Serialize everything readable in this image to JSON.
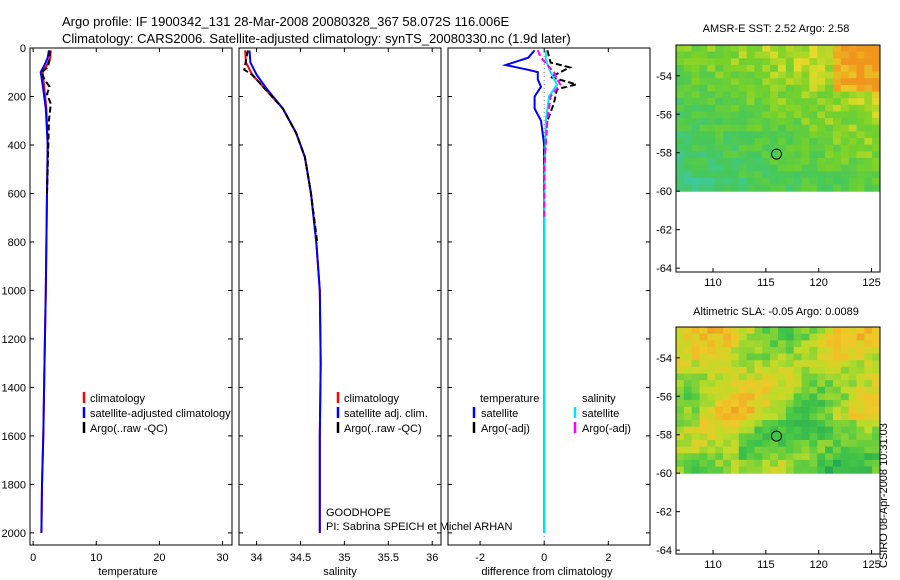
{
  "header": {
    "title_line1": "Argo profile: IF 1900342_131 28-Mar-2008 20080328_367 58.072S 116.006E",
    "title_line2": "Climatology: CARS2006. Satellite-adjusted climatology: synTS_20080330.nc (1.9d later)"
  },
  "colors": {
    "climatology": "#ff0000",
    "satellite": "#0000ff",
    "argo": "#000000",
    "satellite_sal": "#00e5ff",
    "argo_adj_sal": "#ff00ff"
  },
  "panels": {
    "temperature": {
      "xlabel": "temperature",
      "legend": [
        "climatology",
        "satellite-adjusted climatology",
        "Argo(..raw -QC)"
      ]
    },
    "salinity": {
      "xlabel": "salinity",
      "legend": [
        "climatology",
        "satellite adj. clim.",
        "Argo(..raw -QC)"
      ],
      "note1": "GOODHOPE",
      "note2": "PI: Sabrina SPEICH et Michel ARHAN"
    },
    "difference": {
      "xlabel": "difference from climatology",
      "legend_temp_head": "temperature",
      "legend_temp": [
        "satellite",
        "Argo(-adj)"
      ],
      "legend_sal_head": "salinity",
      "legend_sal": [
        "satellite",
        "Argo(-adj)"
      ]
    },
    "sst_map": {
      "title": "AMSR-E SST: 2.52 Argo: 2.58"
    },
    "sla_map": {
      "title": "Altimetric SLA: -0.05 Argo: 0.0089"
    }
  },
  "side_label": "CSIRO 08-Apr-2008 10:31:03",
  "chart_data": [
    {
      "type": "line",
      "name": "temperature profile",
      "xlabel": "temperature",
      "xlim": [
        -0.5,
        31.5
      ],
      "ylim": [
        0,
        2050
      ],
      "x_ticks": [
        0,
        10,
        20,
        30
      ],
      "y_ticks": [
        0,
        200,
        400,
        600,
        800,
        1000,
        1200,
        1400,
        1600,
        1800,
        2000
      ],
      "y_reversed": true,
      "series": [
        {
          "name": "climatology",
          "points": [
            [
              2.8,
              10
            ],
            [
              2.7,
              40
            ],
            [
              2.2,
              70
            ],
            [
              1.5,
              100
            ],
            [
              1.7,
              150
            ],
            [
              2.1,
              250
            ],
            [
              2.3,
              400
            ],
            [
              2.2,
              600
            ],
            [
              2.1,
              800
            ],
            [
              2.0,
              1000
            ],
            [
              1.8,
              1300
            ],
            [
              1.6,
              1600
            ],
            [
              1.4,
              1800
            ],
            [
              1.3,
              2000
            ]
          ]
        },
        {
          "name": "satellite-adjusted climatology",
          "points": [
            [
              2.5,
              10
            ],
            [
              2.3,
              40
            ],
            [
              1.8,
              70
            ],
            [
              1.2,
              100
            ],
            [
              1.5,
              150
            ],
            [
              2.0,
              250
            ],
            [
              2.3,
              400
            ],
            [
              2.2,
              600
            ],
            [
              2.1,
              800
            ],
            [
              2.0,
              1000
            ],
            [
              1.8,
              1300
            ],
            [
              1.6,
              1600
            ],
            [
              1.4,
              1800
            ],
            [
              1.3,
              2000
            ]
          ]
        },
        {
          "name": "Argo(..raw -QC)",
          "points": [
            [
              2.6,
              10
            ],
            [
              2.6,
              50
            ],
            [
              2.3,
              80
            ],
            [
              1.3,
              100
            ],
            [
              1.8,
              130
            ],
            [
              2.6,
              160
            ],
            [
              2.2,
              190
            ],
            [
              2.8,
              230
            ],
            [
              2.5,
              300
            ],
            [
              2.4,
              400
            ],
            [
              2.3,
              500
            ],
            [
              2.2,
              600
            ]
          ]
        }
      ]
    },
    {
      "type": "line",
      "name": "salinity profile",
      "xlabel": "salinity",
      "xlim": [
        33.8,
        36.1
      ],
      "ylim": [
        0,
        2050
      ],
      "x_ticks": [
        34,
        34.5,
        35,
        35.5,
        36
      ],
      "y_reversed": true,
      "series": [
        {
          "name": "climatology",
          "points": [
            [
              33.87,
              10
            ],
            [
              33.88,
              60
            ],
            [
              33.95,
              110
            ],
            [
              34.1,
              170
            ],
            [
              34.3,
              250
            ],
            [
              34.45,
              350
            ],
            [
              34.55,
              450
            ],
            [
              34.62,
              600
            ],
            [
              34.68,
              800
            ],
            [
              34.72,
              1000
            ],
            [
              34.73,
              1300
            ],
            [
              34.72,
              1600
            ],
            [
              34.72,
              1800
            ],
            [
              34.72,
              2000
            ]
          ]
        },
        {
          "name": "satellite adj. clim.",
          "points": [
            [
              33.92,
              10
            ],
            [
              33.93,
              60
            ],
            [
              34.0,
              110
            ],
            [
              34.12,
              170
            ],
            [
              34.3,
              250
            ],
            [
              34.45,
              350
            ],
            [
              34.55,
              450
            ],
            [
              34.62,
              600
            ],
            [
              34.68,
              800
            ],
            [
              34.72,
              1000
            ],
            [
              34.73,
              1300
            ],
            [
              34.72,
              1600
            ],
            [
              34.72,
              1800
            ],
            [
              34.72,
              2000
            ]
          ]
        },
        {
          "name": "Argo(..raw -QC)",
          "points": [
            [
              33.9,
              10
            ],
            [
              33.88,
              50
            ],
            [
              33.86,
              90
            ],
            [
              33.95,
              110
            ],
            [
              34.1,
              170
            ],
            [
              34.3,
              250
            ],
            [
              34.45,
              350
            ],
            [
              34.55,
              450
            ],
            [
              34.62,
              600
            ],
            [
              34.69,
              800
            ]
          ]
        }
      ]
    },
    {
      "type": "line",
      "name": "difference from climatology",
      "xlabel": "difference from climatology",
      "xlim": [
        -3,
        3.3
      ],
      "ylim": [
        0,
        2050
      ],
      "x_ticks": [
        -2,
        0,
        2
      ],
      "y_reversed": true,
      "series": [
        {
          "name": "temperature satellite",
          "points": [
            [
              -0.3,
              10
            ],
            [
              -0.5,
              40
            ],
            [
              -1.2,
              70
            ],
            [
              -0.5,
              90
            ],
            [
              -0.2,
              100
            ],
            [
              -0.2,
              130
            ],
            [
              -0.1,
              160
            ],
            [
              -0.3,
              200
            ],
            [
              -0.3,
              250
            ],
            [
              -0.1,
              300
            ],
            [
              0,
              400
            ],
            [
              0,
              800
            ],
            [
              0,
              1200
            ],
            [
              0,
              2000
            ]
          ]
        },
        {
          "name": "temperature Argo(-adj)",
          "points": [
            [
              0.1,
              10
            ],
            [
              0.2,
              60
            ],
            [
              0.8,
              80
            ],
            [
              0.5,
              100
            ],
            [
              0.2,
              120
            ],
            [
              1.0,
              150
            ],
            [
              0.4,
              170
            ],
            [
              0.3,
              230
            ],
            [
              0.1,
              300
            ],
            [
              0,
              400
            ],
            [
              0,
              600
            ]
          ]
        },
        {
          "name": "salinity satellite",
          "points": [
            [
              0.05,
              10
            ],
            [
              0.05,
              50
            ],
            [
              0.2,
              100
            ],
            [
              0.4,
              150
            ],
            [
              0.15,
              200
            ],
            [
              0.05,
              300
            ],
            [
              0.02,
              500
            ],
            [
              0,
              800
            ],
            [
              0,
              1200
            ],
            [
              0,
              2000
            ]
          ]
        },
        {
          "name": "salinity Argo(-adj)",
          "points": [
            [
              -0.2,
              10
            ],
            [
              -0.1,
              40
            ],
            [
              0.3,
              100
            ],
            [
              0.5,
              150
            ],
            [
              0.2,
              200
            ],
            [
              0.1,
              300
            ],
            [
              0,
              500
            ],
            [
              0,
              700
            ]
          ]
        }
      ]
    },
    {
      "type": "heatmap",
      "name": "AMSR-E SST",
      "title": "AMSR-E SST: 2.52 Argo: 2.58",
      "xlim": [
        106.5,
        125.8
      ],
      "ylim": [
        -64.2,
        -52.4
      ],
      "x_ticks": [
        110,
        115,
        120,
        125
      ],
      "y_ticks": [
        -54,
        -56,
        -58,
        -60,
        -62,
        -64
      ],
      "data_extent_lat": [
        -60,
        -52.4
      ],
      "argo_position": {
        "lon": 116.006,
        "lat": -58.072
      }
    },
    {
      "type": "heatmap",
      "name": "Altimetric SLA",
      "title": "Altimetric SLA: -0.05 Argo: 0.0089",
      "xlim": [
        106.5,
        125.8
      ],
      "ylim": [
        -64.2,
        -52.4
      ],
      "x_ticks": [
        110,
        115,
        120,
        125
      ],
      "y_ticks": [
        -54,
        -56,
        -58,
        -60,
        -62,
        -64
      ],
      "data_extent_lat": [
        -60,
        -52.4
      ],
      "argo_position": {
        "lon": 116.006,
        "lat": -58.072
      }
    }
  ]
}
